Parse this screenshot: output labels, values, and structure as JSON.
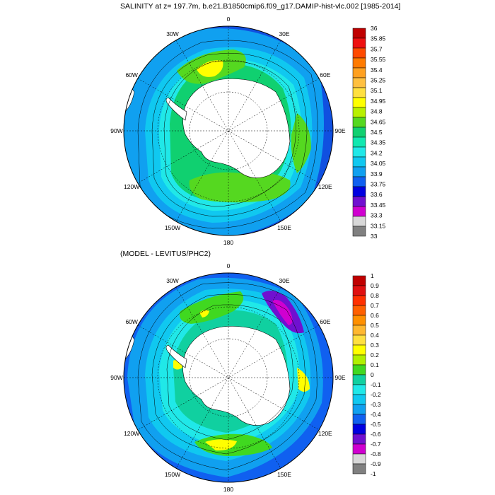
{
  "titles": {
    "main": "SALINITY at z= 197.7m, b.e21.B1850cmip6.f09_g17.DAMIP-hist-vlc.002 [1985-2014]",
    "diff": "(MODEL - LEVITUS/PHC2)"
  },
  "longitude_labels": [
    "0",
    "30E",
    "60E",
    "90E",
    "120E",
    "150E",
    "180",
    "150W",
    "120W",
    "90W",
    "60W",
    "30W"
  ],
  "colorbars": {
    "salinity": {
      "labels": [
        "36",
        "35.85",
        "35.7",
        "35.55",
        "35.4",
        "35.25",
        "35.1",
        "34.95",
        "34.8",
        "34.65",
        "34.5",
        "34.35",
        "34.2",
        "34.05",
        "33.9",
        "33.75",
        "33.6",
        "33.45",
        "33.3",
        "33.15",
        "33"
      ],
      "colors": [
        "#c00000",
        "#ee1010",
        "#ff4a00",
        "#ff7a00",
        "#ffa020",
        "#ffc040",
        "#ffe040",
        "#ffff00",
        "#b8f000",
        "#55d820",
        "#10d070",
        "#10e8b0",
        "#20e8e8",
        "#10c8f0",
        "#10a0f0",
        "#1060f0",
        "#0000e0",
        "#7010d0",
        "#d000d0",
        "#d8d8d8",
        "#808080"
      ]
    },
    "difference": {
      "labels": [
        "1",
        "0.9",
        "0.8",
        "0.7",
        "0.6",
        "0.5",
        "0.4",
        "0.3",
        "0.2",
        "0.1",
        "0",
        "-0.1",
        "-0.2",
        "-0.3",
        "-0.4",
        "-0.5",
        "-0.6",
        "-0.7",
        "-0.8",
        "-0.9",
        "-1"
      ],
      "colors": [
        "#c00000",
        "#e01010",
        "#ff3000",
        "#ff6000",
        "#ff9000",
        "#ffb830",
        "#ffe040",
        "#ffff00",
        "#b0f000",
        "#40d820",
        "#10d0a0",
        "#20e8e8",
        "#10c8f0",
        "#10a0f0",
        "#1060f0",
        "#0000e0",
        "#7010d0",
        "#d000d0",
        "#d8d8d8",
        "#808080"
      ]
    }
  }
}
